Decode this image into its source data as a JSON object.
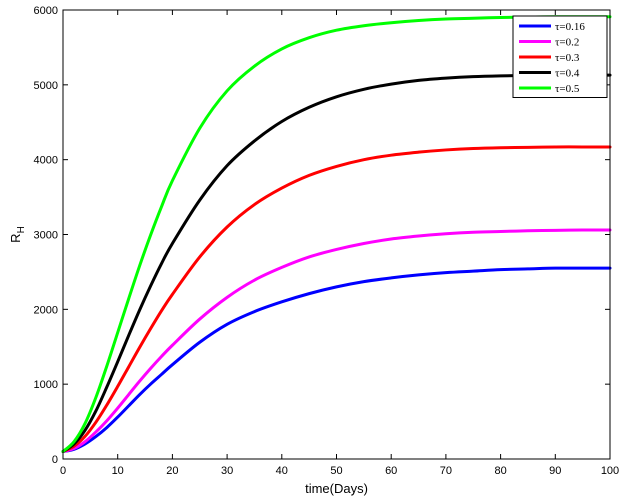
{
  "chart_data": {
    "type": "line",
    "title": "",
    "xlabel": "time(Days)",
    "ylabel": "R",
    "ylabel_subscript": "H",
    "xlim": [
      0,
      100
    ],
    "ylim": [
      0,
      6000
    ],
    "xticks": [
      "0",
      "10",
      "20",
      "30",
      "40",
      "50",
      "60",
      "70",
      "80",
      "90",
      "100"
    ],
    "yticks": [
      "0",
      "1000",
      "2000",
      "3000",
      "4000",
      "5000",
      "6000"
    ],
    "grid": false,
    "legend_position": "top-right",
    "x": [
      0,
      2,
      4,
      6,
      8,
      10,
      12,
      14,
      16,
      18,
      20,
      25,
      30,
      35,
      40,
      45,
      50,
      55,
      60,
      65,
      70,
      75,
      80,
      85,
      90,
      95,
      100
    ],
    "series": [
      {
        "name": "τ=0.16",
        "color": "#0000ff",
        "values": [
          100,
          130,
          200,
          300,
          420,
          560,
          710,
          860,
          1000,
          1130,
          1260,
          1560,
          1800,
          1970,
          2100,
          2210,
          2300,
          2370,
          2420,
          2460,
          2490,
          2510,
          2530,
          2540,
          2550,
          2550,
          2550
        ]
      },
      {
        "name": "τ=0.2",
        "color": "#ff00ff",
        "values": [
          100,
          140,
          230,
          360,
          510,
          680,
          860,
          1040,
          1210,
          1370,
          1520,
          1870,
          2160,
          2390,
          2560,
          2700,
          2800,
          2880,
          2940,
          2980,
          3010,
          3030,
          3040,
          3050,
          3055,
          3060,
          3060
        ]
      },
      {
        "name": "τ=0.3",
        "color": "#ff0000",
        "values": [
          100,
          170,
          300,
          490,
          720,
          970,
          1230,
          1490,
          1740,
          1980,
          2200,
          2700,
          3100,
          3400,
          3620,
          3790,
          3910,
          4000,
          4060,
          4100,
          4130,
          4150,
          4160,
          4165,
          4170,
          4170,
          4170
        ]
      },
      {
        "name": "τ=0.4",
        "color": "#000000",
        "values": [
          100,
          200,
          380,
          640,
          960,
          1300,
          1650,
          1990,
          2310,
          2610,
          2880,
          3460,
          3920,
          4250,
          4510,
          4700,
          4840,
          4940,
          5010,
          5060,
          5090,
          5110,
          5120,
          5125,
          5130,
          5130,
          5130
        ]
      },
      {
        "name": "τ=0.5",
        "color": "#00ff00",
        "values": [
          100,
          230,
          470,
          820,
          1240,
          1690,
          2140,
          2580,
          2990,
          3370,
          3720,
          4420,
          4920,
          5250,
          5480,
          5630,
          5730,
          5790,
          5830,
          5860,
          5880,
          5890,
          5900,
          5905,
          5910,
          5910,
          5910
        ]
      }
    ]
  }
}
